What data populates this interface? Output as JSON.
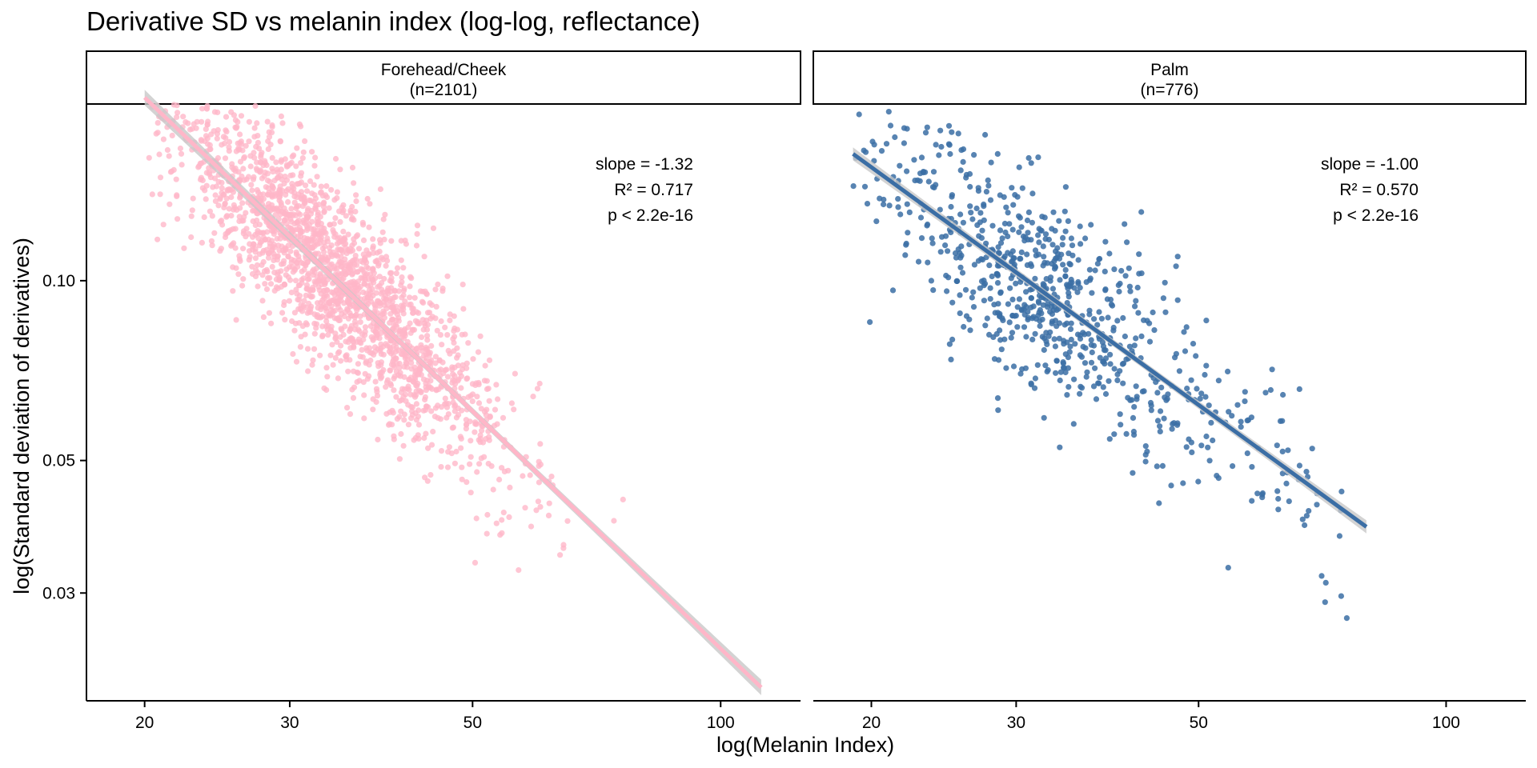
{
  "chart_data": {
    "type": "scatter",
    "title": "Derivative SD vs melanin index (log-log, reflectance)",
    "xlabel": "log(Melanin Index)",
    "ylabel": "log(Standard deviation of derivatives)",
    "x_scale": "log",
    "y_scale": "log",
    "xlim": [
      17,
      125
    ],
    "ylim": [
      0.0198,
      0.197
    ],
    "x_ticks": [
      20,
      30,
      50,
      100
    ],
    "x_tick_labels": [
      "20",
      "30",
      "50",
      "100"
    ],
    "y_ticks": [
      0.03,
      0.05,
      0.1
    ],
    "y_tick_labels": [
      "0.03",
      "0.05",
      "0.10"
    ],
    "grid": false,
    "legend": "none",
    "panels": [
      {
        "strip_label": "Forehead/Cheek",
        "strip_n": "(n=2101)",
        "n": 2101,
        "color": "#ffb6c8",
        "line_color": "#ffb6c8",
        "ribbon_color": "#c8c8c8",
        "x_range": [
          20,
          112
        ],
        "fit": {
          "slope": -1.32,
          "intercept_log10": 1.024
        },
        "annotations": [
          "slope = -1.32",
          "R² = 0.717",
          "p < 2.2e-16"
        ]
      },
      {
        "strip_label": "Palm",
        "strip_n": "(n=776)",
        "n": 776,
        "color": "#3b6ea5",
        "line_color": "#3b6ea5",
        "ribbon_color": "#c8c8c8",
        "x_range": [
          19,
          80
        ],
        "fit": {
          "slope": -1.0,
          "intercept_log10": 0.491
        },
        "annotations": [
          "slope = -1.00",
          "R² = 0.570",
          "p < 2.2e-16"
        ]
      }
    ]
  }
}
